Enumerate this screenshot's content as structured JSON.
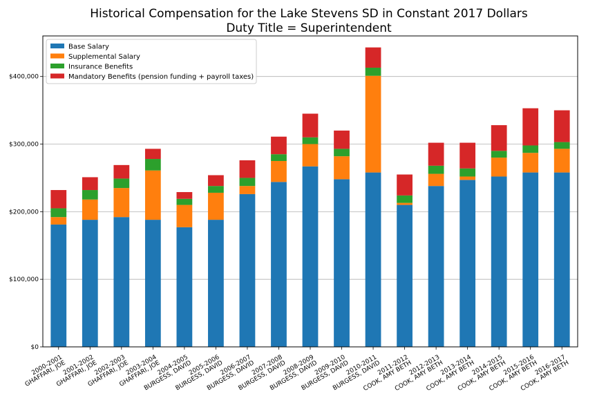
{
  "chart_data": {
    "type": "bar",
    "stacked": true,
    "title": "Historical Compensation for the Lake Stevens SD in Constant 2017 Dollars",
    "subtitle": "Duty Title = Superintendent",
    "xlabel": "",
    "ylabel": "",
    "ylim": [
      0,
      460000
    ],
    "yticks": [
      0,
      100000,
      200000,
      300000,
      400000
    ],
    "ytick_labels": [
      "$0",
      "$100,000",
      "$200,000",
      "$300,000",
      "$400,000"
    ],
    "grid": "y",
    "legend_position": "top-left",
    "categories": [
      [
        "2000-2001",
        "GHAFFARI, JOE"
      ],
      [
        "2001-2002",
        "GHAFFARI, JOE"
      ],
      [
        "2002-2003",
        "GHAFFARI, JOE"
      ],
      [
        "2003-2004",
        "GHAFFARI, JOE"
      ],
      [
        "2004-2005",
        "BURGESS, DAVID"
      ],
      [
        "2005-2006",
        "BURGESS, DAVID"
      ],
      [
        "2006-2007",
        "BURGESS, DAVID"
      ],
      [
        "2007-2008",
        "BURGESS, DAVID"
      ],
      [
        "2008-2009",
        "BURGESS, DAVID"
      ],
      [
        "2009-2010",
        "BURGESS, DAVID"
      ],
      [
        "2010-2011",
        "BURGESS, DAVID"
      ],
      [
        "2011-2012",
        "COOK, AMY BETH"
      ],
      [
        "2012-2013",
        "COOK, AMY BETH"
      ],
      [
        "2013-2014",
        "COOK, AMY BETH"
      ],
      [
        "2014-2015",
        "COOK, AMY BETH"
      ],
      [
        "2015-2016",
        "COOK, AMY BETH"
      ],
      [
        "2016-2017",
        "COOK, AMY BETH"
      ]
    ],
    "series": [
      {
        "name": "Base Salary",
        "color": "#1f77b4",
        "values": [
          181000,
          188000,
          192000,
          188000,
          177000,
          188000,
          226000,
          244000,
          267000,
          248000,
          258000,
          210000,
          238000,
          247000,
          252000,
          258000,
          258000
        ]
      },
      {
        "name": "Supplemental Salary",
        "color": "#ff7f0e",
        "values": [
          11000,
          30000,
          43000,
          73000,
          33000,
          40000,
          12000,
          31000,
          33000,
          34000,
          143000,
          3000,
          18000,
          5000,
          28000,
          29000,
          35000
        ]
      },
      {
        "name": "Insurance Benefits",
        "color": "#2ca02c",
        "values": [
          13000,
          14000,
          14000,
          17000,
          9000,
          10000,
          12000,
          10000,
          10000,
          11000,
          12000,
          11000,
          12000,
          12000,
          10000,
          11000,
          10000
        ]
      },
      {
        "name": "Mandatory Benefits (pension funding + payroll taxes)",
        "color": "#d62728",
        "values": [
          27000,
          19000,
          20000,
          15000,
          10000,
          16000,
          26000,
          26000,
          35000,
          27000,
          30000,
          31000,
          34000,
          38000,
          38000,
          55000,
          47000
        ]
      }
    ]
  }
}
